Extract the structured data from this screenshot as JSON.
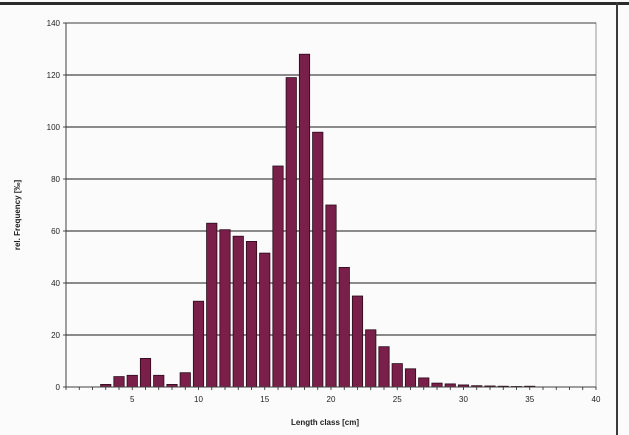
{
  "chart_data": {
    "type": "bar",
    "title": "",
    "xlabel": "Length class  [cm]",
    "ylabel": "rel. Frequency [‰]",
    "xlim": [
      0,
      40
    ],
    "ylim": [
      0,
      140
    ],
    "x_ticks": [
      5,
      10,
      15,
      20,
      25,
      30,
      35,
      40
    ],
    "y_ticks": [
      0,
      20,
      40,
      60,
      80,
      100,
      120,
      140
    ],
    "grid": "horizontal",
    "legend": "none",
    "colors": {
      "bar": "#7a1f4a",
      "bar_stroke": "#2a0a1a",
      "grid": "#1a1a1a",
      "text": "#222222"
    },
    "x": [
      3,
      4,
      5,
      6,
      7,
      8,
      9,
      10,
      11,
      12,
      13,
      14,
      15,
      16,
      17,
      18,
      19,
      20,
      21,
      22,
      23,
      24,
      25,
      26,
      27,
      28,
      29,
      30,
      31,
      32,
      33,
      34,
      35
    ],
    "values": [
      1,
      4,
      4.5,
      11,
      4.5,
      1,
      5.5,
      33,
      63,
      60.5,
      58,
      56,
      51.5,
      85,
      119,
      128,
      98,
      70,
      46,
      35,
      22,
      15.5,
      9,
      7,
      3.5,
      1.5,
      1.2,
      0.8,
      0.5,
      0.4,
      0.3,
      0.2,
      0.3
    ]
  }
}
